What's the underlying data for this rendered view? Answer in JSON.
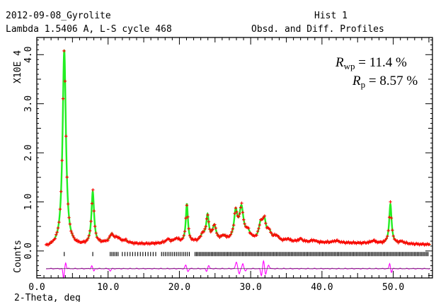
{
  "header": {
    "line1_left": "2012-09-08_Gyrolite",
    "line1_right": "Hist  1",
    "line2_left": "Lambda 1.5406 A, L-S cycle  468",
    "line2_right": "Obsd. and Diff. Profiles"
  },
  "chart_data": {
    "type": "line",
    "xlabel": "2-Theta, deg",
    "ylabel_top": "X10E  4",
    "ylabel_bottom": "Counts",
    "xlim": [
      0,
      55.5
    ],
    "ylim": [
      -0.55,
      4.35
    ],
    "x_ticks": [
      "0.0",
      "10.0",
      "20.0",
      "30.0",
      "40.0",
      "50.0"
    ],
    "y_ticks": [
      "0.0",
      "1.0",
      "2.0",
      "3.0",
      "4.0"
    ],
    "annotations": {
      "rwp": {
        "symbol": "R",
        "sub": "wp",
        "text": " = 11.4 %"
      },
      "rp": {
        "symbol": "R",
        "sub": "p",
        "text": " = 8.57 %"
      }
    },
    "background": [
      [
        1.3,
        0.07
      ],
      [
        3,
        0.09
      ],
      [
        6,
        0.1
      ],
      [
        10,
        0.16
      ],
      [
        15,
        0.14
      ],
      [
        20,
        0.16
      ],
      [
        26,
        0.2
      ],
      [
        30,
        0.2
      ],
      [
        35,
        0.18
      ],
      [
        40,
        0.17
      ],
      [
        45,
        0.16
      ],
      [
        50,
        0.15
      ],
      [
        55,
        0.13
      ]
    ],
    "peaks": [
      {
        "pos": 3.85,
        "height": 4.0,
        "width": 0.28
      },
      {
        "pos": 7.85,
        "height": 1.06,
        "width": 0.22
      },
      {
        "pos": 10.5,
        "height": 0.16,
        "width": 0.3
      },
      {
        "pos": 11.3,
        "height": 0.1,
        "width": 0.45
      },
      {
        "pos": 12.4,
        "height": 0.05,
        "width": 0.4
      },
      {
        "pos": 18.4,
        "height": 0.07,
        "width": 0.4
      },
      {
        "pos": 19.6,
        "height": 0.08,
        "width": 0.4
      },
      {
        "pos": 21.05,
        "height": 0.78,
        "width": 0.18
      },
      {
        "pos": 23.3,
        "height": 0.14,
        "width": 0.35
      },
      {
        "pos": 23.95,
        "height": 0.5,
        "width": 0.22
      },
      {
        "pos": 24.9,
        "height": 0.3,
        "width": 0.3
      },
      {
        "pos": 26.2,
        "height": 0.08,
        "width": 0.3
      },
      {
        "pos": 27.9,
        "height": 0.55,
        "width": 0.28
      },
      {
        "pos": 28.7,
        "height": 0.64,
        "width": 0.35
      },
      {
        "pos": 29.6,
        "height": 0.15,
        "width": 0.4
      },
      {
        "pos": 31.4,
        "height": 0.3,
        "width": 0.3
      },
      {
        "pos": 31.9,
        "height": 0.38,
        "width": 0.3
      },
      {
        "pos": 32.6,
        "height": 0.16,
        "width": 0.35
      },
      {
        "pos": 33.6,
        "height": 0.1,
        "width": 0.4
      },
      {
        "pos": 35.2,
        "height": 0.05,
        "width": 0.4
      },
      {
        "pos": 37.0,
        "height": 0.06,
        "width": 0.4
      },
      {
        "pos": 38.8,
        "height": 0.04,
        "width": 0.4
      },
      {
        "pos": 42.0,
        "height": 0.04,
        "width": 0.5
      },
      {
        "pos": 47.2,
        "height": 0.05,
        "width": 0.4
      },
      {
        "pos": 49.6,
        "height": 0.8,
        "width": 0.2
      },
      {
        "pos": 51.2,
        "height": 0.04,
        "width": 0.4
      }
    ],
    "tick_marks": [
      {
        "from": 3.85,
        "to": 3.85,
        "step": 1
      },
      {
        "from": 7.85,
        "to": 7.85,
        "step": 1
      },
      {
        "from": 10.3,
        "to": 11.4,
        "step": 0.22
      },
      {
        "from": 12.0,
        "to": 17.0,
        "step": 0.36
      },
      {
        "from": 17.5,
        "to": 21.5,
        "step": 0.26
      },
      {
        "from": 22.2,
        "to": 55.0,
        "step": 0.19
      }
    ],
    "difference": [
      {
        "pos": 3.75,
        "amp": -0.2,
        "width": 0.12
      },
      {
        "pos": 4.05,
        "amp": 0.12,
        "width": 0.12
      },
      {
        "pos": 7.7,
        "amp": 0.06,
        "width": 0.12
      },
      {
        "pos": 8.0,
        "amp": -0.05,
        "width": 0.12
      },
      {
        "pos": 10.3,
        "amp": -0.05,
        "width": 0.15
      },
      {
        "pos": 20.9,
        "amp": 0.07,
        "width": 0.15
      },
      {
        "pos": 21.2,
        "amp": -0.06,
        "width": 0.15
      },
      {
        "pos": 23.8,
        "amp": -0.05,
        "width": 0.15
      },
      {
        "pos": 24.1,
        "amp": 0.06,
        "width": 0.15
      },
      {
        "pos": 28.0,
        "amp": 0.13,
        "width": 0.18
      },
      {
        "pos": 28.4,
        "amp": -0.11,
        "width": 0.15
      },
      {
        "pos": 28.9,
        "amp": 0.1,
        "width": 0.15
      },
      {
        "pos": 29.3,
        "amp": -0.05,
        "width": 0.15
      },
      {
        "pos": 31.5,
        "amp": -0.14,
        "width": 0.15
      },
      {
        "pos": 31.8,
        "amp": 0.16,
        "width": 0.15
      },
      {
        "pos": 32.1,
        "amp": -0.12,
        "width": 0.15
      },
      {
        "pos": 32.5,
        "amp": 0.08,
        "width": 0.15
      },
      {
        "pos": 49.5,
        "amp": 0.1,
        "width": 0.12
      },
      {
        "pos": 49.75,
        "amp": -0.07,
        "width": 0.12
      }
    ],
    "diff_offset": -0.36,
    "colors": {
      "observed": "#ff0000",
      "calculated": "#22ee22",
      "difference": "#ff00ff",
      "ticks": "#000000",
      "frame": "#000000"
    }
  }
}
